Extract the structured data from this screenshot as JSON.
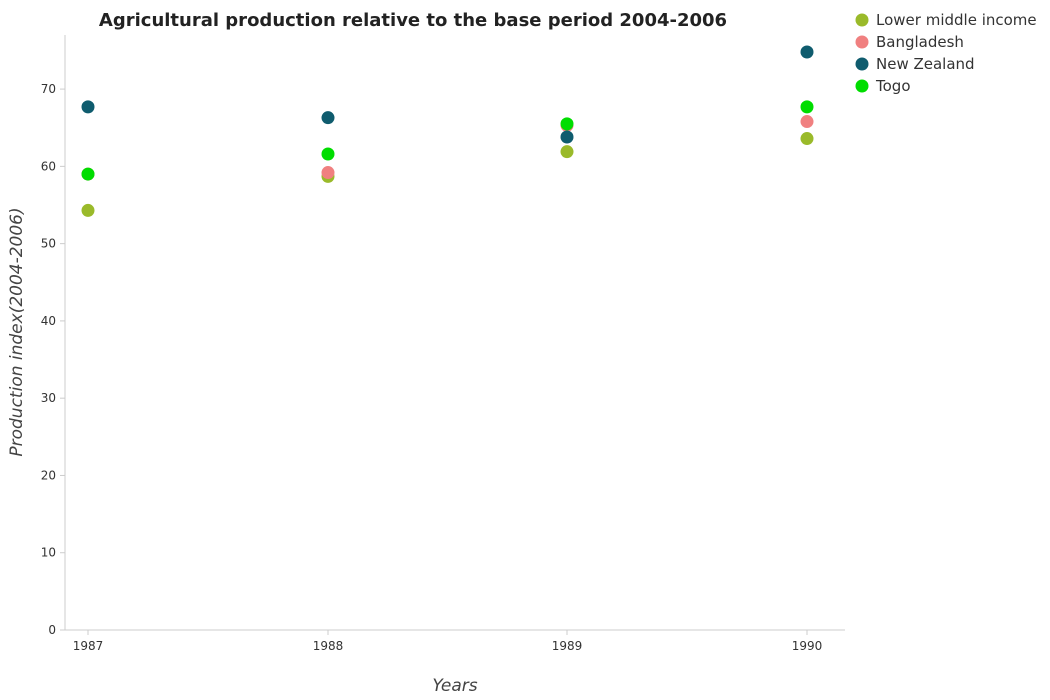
{
  "chart_data": {
    "type": "scatter",
    "title": "Agricultural production relative to the base period 2004-2006",
    "xlabel": "Years",
    "ylabel": "Production index(2004-2006)",
    "x": [
      "1987",
      "1988",
      "1989",
      "1990"
    ],
    "ylim": [
      0,
      77
    ],
    "yticks": [
      0,
      10,
      20,
      30,
      40,
      50,
      60,
      70
    ],
    "grid": false,
    "legend_position": "top-right",
    "series": [
      {
        "name": "Lower middle income",
        "color": "#9aba2a",
        "values": [
          54.3,
          58.7,
          61.9,
          63.6
        ]
      },
      {
        "name": "Bangladesh",
        "color": "#f08080",
        "values": [
          59.0,
          59.2,
          65.3,
          65.8
        ]
      },
      {
        "name": "New Zealand",
        "color": "#0f5c6e",
        "values": [
          67.7,
          66.3,
          63.8,
          74.8
        ]
      },
      {
        "name": "Togo",
        "color": "#00dd00",
        "values": [
          59.0,
          61.6,
          65.5,
          67.7
        ]
      }
    ]
  }
}
